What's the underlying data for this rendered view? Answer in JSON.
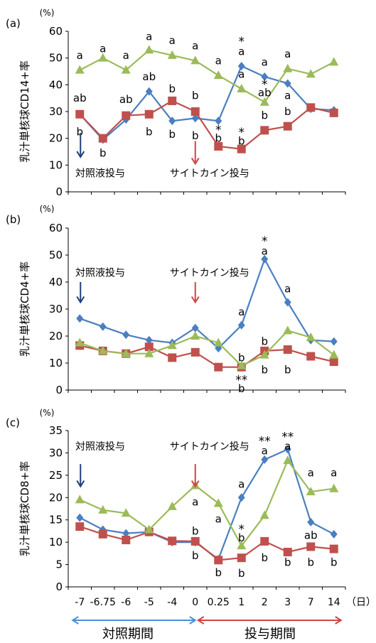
{
  "x_categories": [
    "-7",
    "-6.75",
    "-6",
    "-5",
    "-4",
    "0",
    "0.25",
    "1",
    "2",
    "3",
    "7",
    "14"
  ],
  "x_unit": "（日）",
  "periods": [
    {
      "label": "対照期間",
      "color": "#4a90d9"
    },
    {
      "label": "投与期間",
      "color": "#d04545"
    }
  ],
  "series_colors": {
    "blue": "#4a7fc0",
    "red": "#c0504d",
    "green": "#9bbb59",
    "star_blue": "#4a90d9",
    "star_red": "#e02020",
    "star_green": "#8aa83a",
    "arrow_blue": "#1f3f7a",
    "arrow_red": "#d04545"
  },
  "chart_data": [
    {
      "type": "line",
      "panel_label": "(a)",
      "unit_label": "(%)",
      "ylabel": "乳汁単核球CD14+率",
      "ylim": [
        0,
        60
      ],
      "yticks": [
        0,
        10,
        20,
        30,
        40,
        50,
        60
      ],
      "categories": [
        "-7",
        "-6.75",
        "-6",
        "-5",
        "-4",
        "0",
        "0.25",
        "1",
        "2",
        "3",
        "7",
        "14"
      ],
      "series": [
        {
          "color_key": "blue",
          "marker": "diamond",
          "values": [
            29,
            19.5,
            27,
            37.5,
            26.5,
            27.5,
            26.5,
            47,
            43,
            40.5,
            31,
            30.5
          ]
        },
        {
          "color_key": "red",
          "marker": "square",
          "values": [
            29,
            20,
            28.5,
            29,
            34,
            30,
            17,
            16,
            23,
            24.5,
            31.5,
            29.5
          ]
        },
        {
          "color_key": "green",
          "marker": "triangle",
          "values": [
            45.5,
            50,
            45.5,
            53,
            51,
            49,
            43.5,
            38.5,
            33.5,
            46,
            44,
            48.5
          ]
        }
      ],
      "annotations": [
        {
          "text": "a",
          "x": "-7",
          "y": 51,
          "color_key": null
        },
        {
          "text": "ab",
          "x": "-7",
          "y": 35,
          "color_key": null
        },
        {
          "text": "b",
          "x": "-7",
          "y": 22.5,
          "color_key": null
        },
        {
          "text": "a",
          "x": "-6.75",
          "y": 53.5,
          "color_key": null
        },
        {
          "text": "b",
          "x": "-6.75",
          "y": 14.5,
          "color_key": null
        },
        {
          "text": "a",
          "x": "-6",
          "y": 51,
          "color_key": null
        },
        {
          "text": "ab",
          "x": "-6",
          "y": 34.5,
          "color_key": null
        },
        {
          "text": "a",
          "x": "-5",
          "y": 58,
          "color_key": null
        },
        {
          "text": "ab",
          "x": "-5",
          "y": 43,
          "color_key": null
        },
        {
          "text": "b",
          "x": "-5",
          "y": 22.5,
          "color_key": null
        },
        {
          "text": "a",
          "x": "-4",
          "y": 56.5,
          "color_key": null
        },
        {
          "text": "b",
          "x": "-4",
          "y": 38.5,
          "color_key": null
        },
        {
          "text": "b",
          "x": "-4",
          "y": 21.5,
          "color_key": null
        },
        {
          "text": "a",
          "x": "0",
          "y": 54.5,
          "color_key": null
        },
        {
          "text": "b",
          "x": "0",
          "y": 36,
          "color_key": null
        },
        {
          "text": "b",
          "x": "0",
          "y": 21,
          "color_key": null
        },
        {
          "text": "a",
          "x": "0.25",
          "y": 49,
          "color_key": null
        },
        {
          "text": "*",
          "x": "0.25",
          "y": 23,
          "color_key": "star_red"
        },
        {
          "text": "b",
          "x": "0.25",
          "y": 20,
          "color_key": null
        },
        {
          "text": "*",
          "x": "1",
          "y": 56,
          "color_key": "star_blue"
        },
        {
          "text": "a",
          "x": "1",
          "y": 52.5,
          "color_key": null
        },
        {
          "text": "a",
          "x": "1",
          "y": 44,
          "color_key": null
        },
        {
          "text": "*",
          "x": "1",
          "y": 22,
          "color_key": "star_red"
        },
        {
          "text": "b",
          "x": "1",
          "y": 19,
          "color_key": null
        },
        {
          "text": "a",
          "x": "2",
          "y": 48.5,
          "color_key": null
        },
        {
          "text": "*",
          "x": "2",
          "y": 40,
          "color_key": "star_green"
        },
        {
          "text": "ab",
          "x": "2",
          "y": 37,
          "color_key": null
        },
        {
          "text": "b",
          "x": "2",
          "y": 28.5,
          "color_key": null
        },
        {
          "text": "a",
          "x": "3",
          "y": 51.5,
          "color_key": null
        },
        {
          "text": "a",
          "x": "3",
          "y": 36,
          "color_key": null
        },
        {
          "text": "b",
          "x": "3",
          "y": 30,
          "color_key": null
        }
      ],
      "arrows": [
        {
          "label": "対照液投与",
          "x": "-7",
          "color_key": "arrow_blue",
          "y_from": 22,
          "y_to": 13,
          "label_y": 7
        },
        {
          "label": "サイトカイン投与",
          "x": "0",
          "color_key": "arrow_red",
          "y_from": 19,
          "y_to": 10.5,
          "label_y": 7
        }
      ]
    },
    {
      "type": "line",
      "panel_label": "(b)",
      "unit_label": "(%)",
      "ylabel": "乳汁単核球CD4+率",
      "ylim": [
        0,
        60
      ],
      "yticks": [
        0,
        10,
        20,
        30,
        40,
        50,
        60
      ],
      "categories": [
        "-7",
        "-6.75",
        "-6",
        "-5",
        "-4",
        "0",
        "0.25",
        "1",
        "2",
        "3",
        "7",
        "14"
      ],
      "series": [
        {
          "color_key": "blue",
          "marker": "diamond",
          "values": [
            26.5,
            23.5,
            20.5,
            18.5,
            17.5,
            23,
            15.5,
            24,
            48.5,
            32.5,
            18.5,
            18
          ]
        },
        {
          "color_key": "red",
          "marker": "square",
          "values": [
            16.5,
            14.5,
            13.5,
            16,
            12,
            14,
            8.5,
            8.5,
            14.5,
            15,
            12.5,
            10.5
          ]
        },
        {
          "color_key": "green",
          "marker": "triangle",
          "values": [
            17.5,
            14.5,
            13.5,
            13.5,
            16.5,
            20,
            17.5,
            9,
            13,
            22,
            19.5,
            13
          ]
        }
      ],
      "annotations": [
        {
          "text": "*",
          "x": "2",
          "y": 55,
          "color_key": "star_blue"
        },
        {
          "text": "a",
          "x": "2",
          "y": 51.5,
          "color_key": null
        },
        {
          "text": "a",
          "x": "3",
          "y": 37.5,
          "color_key": null
        },
        {
          "text": "a",
          "x": "1",
          "y": 29,
          "color_key": null
        },
        {
          "text": "b",
          "x": "1",
          "y": 12,
          "color_key": null
        },
        {
          "text": "**",
          "x": "1",
          "y": 3.5,
          "color_key": "star_green"
        },
        {
          "text": "b",
          "x": "1",
          "y": 0.5,
          "color_key": null
        },
        {
          "text": "b",
          "x": "2",
          "y": 18,
          "color_key": null
        },
        {
          "text": "b",
          "x": "2",
          "y": 7.5,
          "color_key": null
        },
        {
          "text": "b",
          "x": "3",
          "y": 7.5,
          "color_key": null
        }
      ],
      "arrows": [
        {
          "label": "対照液投与",
          "x": "-7",
          "color_key": "arrow_blue",
          "y_from": 40,
          "y_to": 32.5,
          "label_y": 43.5
        },
        {
          "label": "サイトカイン投与",
          "x": "0",
          "color_key": "arrow_red",
          "y_from": 40,
          "y_to": 32.5,
          "label_y": 43.5
        }
      ]
    },
    {
      "type": "line",
      "panel_label": "(c)",
      "unit_label": "(%)",
      "ylabel": "乳汁単核球CD8+率",
      "ylim": [
        0,
        35
      ],
      "yticks": [
        0,
        5,
        10,
        15,
        20,
        25,
        30,
        35
      ],
      "categories": [
        "-7",
        "-6.75",
        "-6",
        "-5",
        "-4",
        "0",
        "0.25",
        "1",
        "2",
        "3",
        "7",
        "14"
      ],
      "series": [
        {
          "color_key": "blue",
          "marker": "diamond",
          "values": [
            15.5,
            12.8,
            12,
            12.3,
            10,
            10,
            6.2,
            20,
            28.5,
            30.8,
            14.5,
            11.8
          ]
        },
        {
          "color_key": "red",
          "marker": "square",
          "values": [
            13.5,
            11.8,
            10.5,
            12.3,
            10.3,
            10.2,
            6,
            6.5,
            10.2,
            7.8,
            9,
            8.5
          ]
        },
        {
          "color_key": "green",
          "marker": "triangle",
          "values": [
            19.5,
            17.2,
            16.5,
            12.8,
            18,
            22.7,
            18.7,
            9.2,
            16,
            28.3,
            21.3,
            22
          ]
        }
      ],
      "annotations": [
        {
          "text": "**",
          "x": "2",
          "y": 32.5,
          "color_key": "star_blue"
        },
        {
          "text": "**",
          "x": "3",
          "y": 33.5,
          "color_key": "star_blue"
        },
        {
          "text": "a",
          "x": "2",
          "y": 30.5,
          "color_key": null
        },
        {
          "text": "a",
          "x": "3",
          "y": 31.5,
          "color_key": null
        },
        {
          "text": "a",
          "x": "7",
          "y": 25.5,
          "color_key": null
        },
        {
          "text": "a",
          "x": "14",
          "y": 25.5,
          "color_key": null
        },
        {
          "text": "a",
          "x": "0",
          "y": 19,
          "color_key": null
        },
        {
          "text": "a",
          "x": "0.25",
          "y": 15.2,
          "color_key": null
        },
        {
          "text": "a",
          "x": "1",
          "y": 23,
          "color_key": null
        },
        {
          "text": "*",
          "x": "1",
          "y": 12.8,
          "color_key": "star_green"
        },
        {
          "text": "b",
          "x": "1",
          "y": 11,
          "color_key": null
        },
        {
          "text": "b",
          "x": "0",
          "y": 12.5,
          "color_key": null
        },
        {
          "text": "b",
          "x": "0",
          "y": 7,
          "color_key": null
        },
        {
          "text": "b",
          "x": "0.25",
          "y": 3.2,
          "color_key": null
        },
        {
          "text": "b",
          "x": "1",
          "y": 3,
          "color_key": null
        },
        {
          "text": "b",
          "x": "2",
          "y": 6.5,
          "color_key": null
        },
        {
          "text": "b",
          "x": "3",
          "y": 5.5,
          "color_key": null
        },
        {
          "text": "ab",
          "x": "7",
          "y": 11.5,
          "color_key": null
        },
        {
          "text": "b",
          "x": "7",
          "y": 5.5,
          "color_key": null
        },
        {
          "text": "b",
          "x": "14",
          "y": 5.5,
          "color_key": null
        }
      ],
      "arrows": [
        {
          "label": "対照液投与",
          "x": "-7",
          "color_key": "arrow_blue",
          "y_from": 27.5,
          "y_to": 22.5,
          "label_y": 31.5
        },
        {
          "label": "サイトカイン投与",
          "x": "0",
          "color_key": "arrow_red",
          "y_from": 27.5,
          "y_to": 22.5,
          "label_y": 31.5
        }
      ]
    }
  ]
}
